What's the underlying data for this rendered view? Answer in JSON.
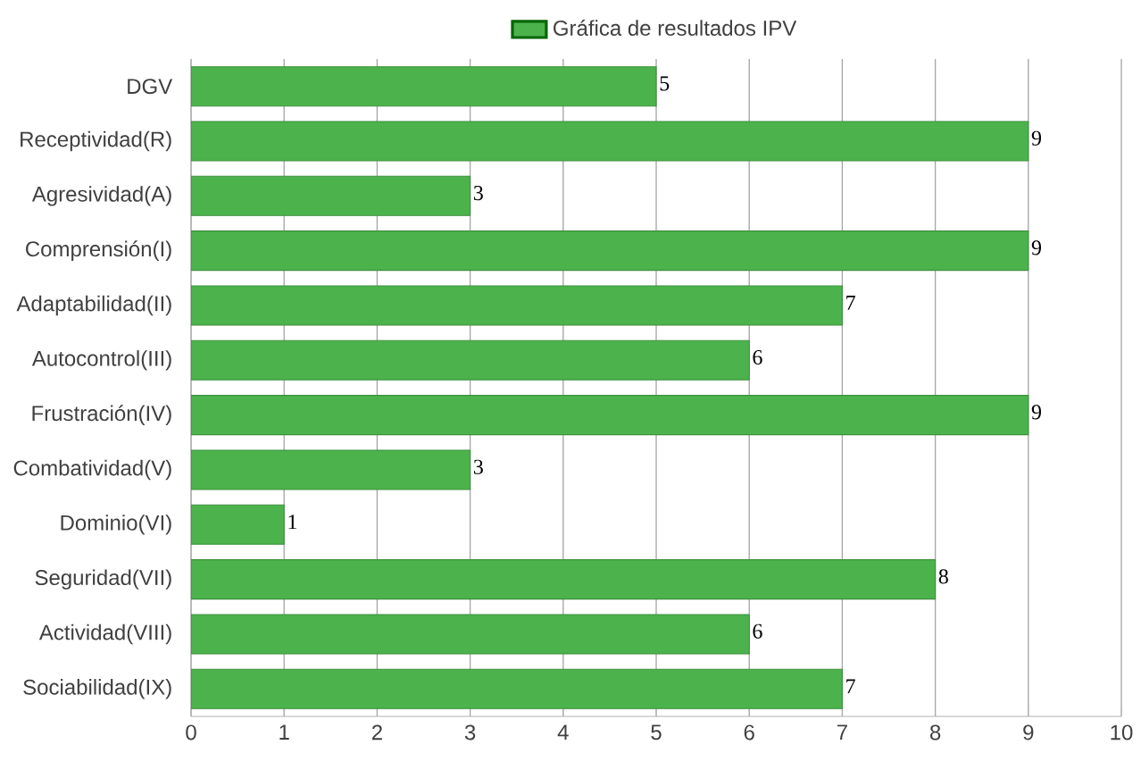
{
  "chart_data": {
    "type": "bar",
    "orientation": "horizontal",
    "categories": [
      "DGV",
      "Receptividad(R)",
      "Agresividad(A)",
      "Comprensión(I)",
      "Adaptabilidad(II)",
      "Autocontrol(III)",
      "Frustración(IV)",
      "Combatividad(V)",
      "Dominio(VI)",
      "Seguridad(VII)",
      "Actividad(VIII)",
      "Sociabilidad(IX)"
    ],
    "series": [
      {
        "name": "Gráfica de resultados IPV",
        "color": "#4cb34c",
        "values": [
          5,
          9,
          3,
          9,
          7,
          6,
          9,
          3,
          1,
          8,
          6,
          7
        ]
      }
    ],
    "xlim": [
      0,
      10
    ],
    "xticks": [
      0,
      1,
      2,
      3,
      4,
      5,
      6,
      7,
      8,
      9,
      10
    ],
    "grid": "x",
    "legend": "top",
    "data_labels": true
  }
}
